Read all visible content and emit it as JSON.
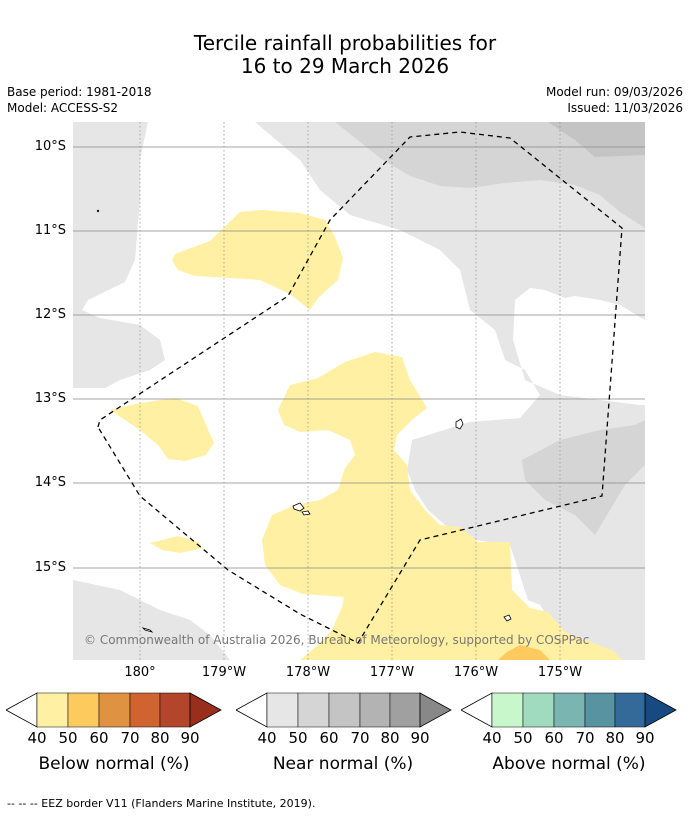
{
  "title_line1": "Tercile rainfall probabilities for",
  "title_line2": "16 to 29 March 2026",
  "base_period": "Base period: 1981-2018",
  "model": "Model: ACCESS-S2",
  "model_run": "Model run: 09/03/2026",
  "issued": "Issued: 11/03/2026",
  "lat_labels": [
    "10°S",
    "11°S",
    "12°S",
    "13°S",
    "14°S",
    "15°S"
  ],
  "lon_labels": [
    "180°",
    "179°W",
    "178°W",
    "177°W",
    "176°W",
    "175°W"
  ],
  "copyright": "© Commonwealth of Australia 2026, Bureau of Meteorology, supported by COSPPac",
  "colorbars": [
    {
      "title": "Below normal (%)",
      "ticks": [
        "40",
        "50",
        "60",
        "70",
        "80",
        "90"
      ],
      "colors": [
        "#fff0a3",
        "#fdca5e",
        "#e09243",
        "#cf6431",
        "#b2452a",
        "#9a2e1c"
      ]
    },
    {
      "title": "Near normal (%)",
      "ticks": [
        "40",
        "50",
        "60",
        "70",
        "80",
        "90"
      ],
      "colors": [
        "#e6e6e6",
        "#d5d5d5",
        "#c4c4c4",
        "#b3b3b3",
        "#a0a0a0",
        "#888888"
      ]
    },
    {
      "title": "Above normal (%)",
      "ticks": [
        "40",
        "50",
        "60",
        "70",
        "80",
        "90"
      ],
      "colors": [
        "#c8f7cc",
        "#a0dbbf",
        "#7ab5b1",
        "#5893a2",
        "#336a9a",
        "#184a82"
      ]
    }
  ],
  "footer": "-- -- -- EEZ border V11 (Flanders Marine Institute, 2019)."
}
